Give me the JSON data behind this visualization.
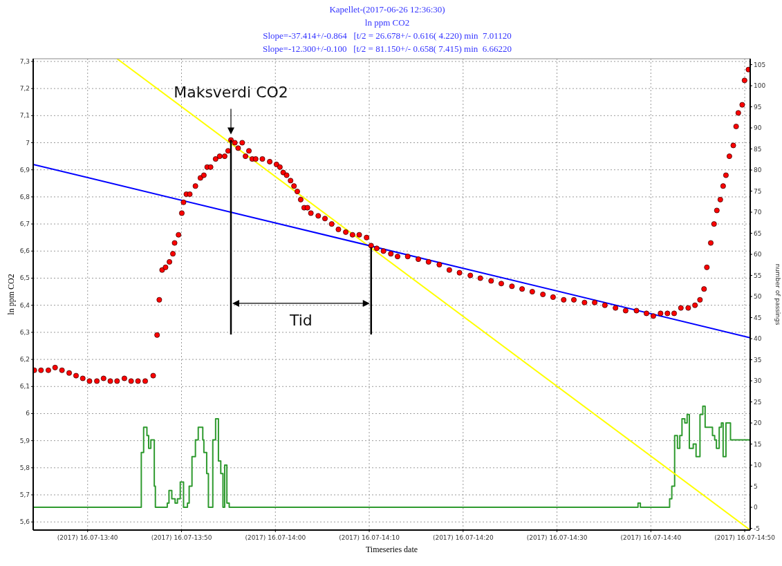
{
  "chart_data": {
    "type": "scatter",
    "title": "Kapellet-(2017-06-26 12:36:30)",
    "subtitle": "ln ppm CO2",
    "xlabel": "Timeseries date",
    "ylabel": "ln ppm CO2",
    "y2label": "number of passings",
    "annotations": [
      "Slope=-37.414+/-0.864   [t/2 = 26.678+/- 0.616( 4.220) min  7.01120",
      "Slope=-12.300+/-0.100   [t/2 = 81.150+/- 0.658( 7.415) min  6.66220",
      {
        "text": "Maksverdi CO2",
        "x": "2017-07-16T13:55:16",
        "y": 7.01
      },
      "Tid"
    ],
    "ref_lines": [
      {
        "axis": "x",
        "value": "2017-07-16T13:55:16",
        "color": "#000000"
      },
      {
        "axis": "x",
        "value": "2017-07-16T14:10:12",
        "color": "#000000"
      }
    ],
    "xlim": [
      "2017-07-16T13:34:12",
      "2017-07-16T14:50:35"
    ],
    "xticks": [
      {
        "value": "2017-07-16T13:40",
        "label": "(2017) 16.07-13:40"
      },
      {
        "value": "2017-07-16T13:50",
        "label": "(2017) 16.07-13:50"
      },
      {
        "value": "2017-07-16T14:00",
        "label": "(2017) 16.07-14:00"
      },
      {
        "value": "2017-07-16T14:10",
        "label": "(2017) 16.07-14:10"
      },
      {
        "value": "2017-07-16T14:20",
        "label": "(2017) 16.07-14:20"
      },
      {
        "value": "2017-07-16T14:30",
        "label": "(2017) 16.07-14:30"
      },
      {
        "value": "2017-07-16T14:40",
        "label": "(2017) 16.07-14:40"
      },
      {
        "value": "2017-07-16T14:50",
        "label": "(2017) 16.07-14:50"
      }
    ],
    "ylim": [
      5.57,
      7.31
    ],
    "yticks": [
      {
        "value": 5.6,
        "label": "5,6"
      },
      {
        "value": 5.7,
        "label": "5,7"
      },
      {
        "value": 5.8,
        "label": "5,8"
      },
      {
        "value": 5.9,
        "label": "5,9"
      },
      6,
      {
        "value": 6.1,
        "label": "6,1"
      },
      {
        "value": 6.2,
        "label": "6,2"
      },
      {
        "value": 6.3,
        "label": "6,3"
      },
      {
        "value": 6.4,
        "label": "6,4"
      },
      {
        "value": 6.5,
        "label": "6,5"
      },
      {
        "value": 6.6,
        "label": "6,6"
      },
      {
        "value": 6.7,
        "label": "6,7"
      },
      {
        "value": 6.8,
        "label": "6,8"
      },
      {
        "value": 6.9,
        "label": "6,9"
      },
      7,
      {
        "value": 7.1,
        "label": "7,1"
      },
      {
        "value": 7.2,
        "label": "7,2"
      },
      {
        "value": 7.3,
        "label": "7,3"
      }
    ],
    "y2lim": [
      -5.4,
      106.4
    ],
    "y2ticks": [
      -5,
      0,
      5,
      10,
      15,
      20,
      25,
      30,
      35,
      40,
      45,
      50,
      55,
      60,
      65,
      70,
      75,
      80,
      85,
      90,
      95,
      100,
      105
    ],
    "grid": true,
    "marker": "circle",
    "series": [
      {
        "color": "#ff0000",
        "x": [
          "2017-07-16T13:34:19",
          "2017-07-16T13:35:02",
          "2017-07-16T13:35:49",
          "2017-07-16T13:36:32",
          "2017-07-16T13:37:16",
          "2017-07-16T13:38:02",
          "2017-07-16T13:38:46",
          "2017-07-16T13:39:29",
          "2017-07-16T13:40:12",
          "2017-07-16T13:40:59",
          "2017-07-16T13:41:42",
          "2017-07-16T13:42:25",
          "2017-07-16T13:43:08",
          "2017-07-16T13:43:55",
          "2017-07-16T13:44:38",
          "2017-07-16T13:45:22",
          "2017-07-16T13:46:08",
          "2017-07-16T13:46:59",
          "2017-07-16T13:47:24",
          "2017-07-16T13:47:38",
          "2017-07-16T13:47:56",
          "2017-07-16T13:48:18",
          "2017-07-16T13:48:43",
          "2017-07-16T13:49:05",
          "2017-07-16T13:49:16",
          "2017-07-16T13:49:41",
          "2017-07-16T13:50:02",
          "2017-07-16T13:50:13",
          "2017-07-16T13:50:31",
          "2017-07-16T13:50:53",
          "2017-07-16T13:51:29",
          "2017-07-16T13:52:01",
          "2017-07-16T13:52:23",
          "2017-07-16T13:52:44",
          "2017-07-16T13:53:06",
          "2017-07-16T13:53:38",
          "2017-07-16T13:54:04",
          "2017-07-16T13:54:36",
          "2017-07-16T13:54:58",
          "2017-07-16T13:55:16",
          "2017-07-16T13:55:41",
          "2017-07-16T13:56:02",
          "2017-07-16T13:56:28",
          "2017-07-16T13:56:49",
          "2017-07-16T13:57:11",
          "2017-07-16T13:57:32",
          "2017-07-16T13:57:54",
          "2017-07-16T13:58:37",
          "2017-07-16T13:59:24",
          "2017-07-16T14:00:07",
          "2017-07-16T14:00:29",
          "2017-07-16T14:00:50",
          "2017-07-16T14:01:12",
          "2017-07-16T14:01:37",
          "2017-07-16T14:01:59",
          "2017-07-16T14:02:20",
          "2017-07-16T14:02:42",
          "2017-07-16T14:03:04",
          "2017-07-16T14:03:25",
          "2017-07-16T14:03:47",
          "2017-07-16T14:04:34",
          "2017-07-16T14:05:17",
          "2017-07-16T14:06:00",
          "2017-07-16T14:06:43",
          "2017-07-16T14:07:30",
          "2017-07-16T14:08:13",
          "2017-07-16T14:08:56",
          "2017-07-16T14:09:43",
          "2017-07-16T14:10:12",
          "2017-07-16T14:10:48",
          "2017-07-16T14:11:31",
          "2017-07-16T14:12:18",
          "2017-07-16T14:13:01",
          "2017-07-16T14:14:06",
          "2017-07-16T14:15:14",
          "2017-07-16T14:16:19",
          "2017-07-16T14:17:28",
          "2017-07-16T14:18:32",
          "2017-07-16T14:19:37",
          "2017-07-16T14:20:46",
          "2017-07-16T14:21:50",
          "2017-07-16T14:22:59",
          "2017-07-16T14:24:04",
          "2017-07-16T14:25:12",
          "2017-07-16T14:26:17",
          "2017-07-16T14:27:22",
          "2017-07-16T14:28:30",
          "2017-07-16T14:29:35",
          "2017-07-16T14:30:43",
          "2017-07-16T14:31:48",
          "2017-07-16T14:32:56",
          "2017-07-16T14:34:01",
          "2017-07-16T14:35:06",
          "2017-07-16T14:36:14",
          "2017-07-16T14:37:19",
          "2017-07-16T14:38:28",
          "2017-07-16T14:39:32",
          "2017-07-16T14:40:16",
          "2017-07-16T14:41:02",
          "2017-07-16T14:41:46",
          "2017-07-16T14:42:29",
          "2017-07-16T14:43:12",
          "2017-07-16T14:43:59",
          "2017-07-16T14:44:42",
          "2017-07-16T14:45:14",
          "2017-07-16T14:45:40",
          "2017-07-16T14:45:58",
          "2017-07-16T14:46:23",
          "2017-07-16T14:46:44",
          "2017-07-16T14:47:02",
          "2017-07-16T14:47:24",
          "2017-07-16T14:47:42",
          "2017-07-16T14:48:00",
          "2017-07-16T14:48:22",
          "2017-07-16T14:48:47",
          "2017-07-16T14:49:05",
          "2017-07-16T14:49:19",
          "2017-07-16T14:49:44",
          "2017-07-16T14:49:59",
          "2017-07-16T14:50:24"
        ],
        "values": [
          6.16,
          6.16,
          6.16,
          6.17,
          6.16,
          6.15,
          6.14,
          6.13,
          6.12,
          6.12,
          6.13,
          6.12,
          6.12,
          6.13,
          6.12,
          6.12,
          6.12,
          6.14,
          6.29,
          6.42,
          6.53,
          6.54,
          6.56,
          6.59,
          6.63,
          6.66,
          6.74,
          6.78,
          6.81,
          6.81,
          6.84,
          6.87,
          6.88,
          6.91,
          6.91,
          6.94,
          6.95,
          6.95,
          6.97,
          7.01,
          7.0,
          6.98,
          7.0,
          6.95,
          6.97,
          6.94,
          6.94,
          6.94,
          6.93,
          6.92,
          6.91,
          6.89,
          6.88,
          6.86,
          6.84,
          6.82,
          6.79,
          6.76,
          6.76,
          6.74,
          6.73,
          6.72,
          6.7,
          6.68,
          6.67,
          6.66,
          6.66,
          6.65,
          6.62,
          6.61,
          6.6,
          6.59,
          6.58,
          6.58,
          6.57,
          6.56,
          6.55,
          6.53,
          6.52,
          6.51,
          6.5,
          6.49,
          6.48,
          6.47,
          6.46,
          6.45,
          6.44,
          6.43,
          6.42,
          6.42,
          6.41,
          6.41,
          6.4,
          6.39,
          6.38,
          6.38,
          6.37,
          6.36,
          6.37,
          6.37,
          6.37,
          6.39,
          6.39,
          6.4,
          6.42,
          6.46,
          6.54,
          6.63,
          6.7,
          6.75,
          6.79,
          6.84,
          6.88,
          6.95,
          6.99,
          7.06,
          7.11,
          7.14,
          7.23,
          7.27
        ]
      },
      {
        "type": "line",
        "marker": "none",
        "color": "#0000ff",
        "x": [
          "2017-07-16T13:34:12",
          "2017-07-16T14:50:35"
        ],
        "values": [
          6.92,
          6.28
        ]
      },
      {
        "type": "line",
        "marker": "none",
        "color": "#ffff00",
        "x": [
          "2017-07-16T13:43:08",
          "2017-07-16T14:50:35"
        ],
        "values": [
          7.31,
          5.57
        ]
      },
      {
        "type": "step",
        "marker": "none",
        "color": "#2e9a2e",
        "axis": "y2",
        "x": [
          "2017-07-16T13:34:12",
          "2017-07-16T13:45:43",
          "2017-07-16T13:45:58",
          "2017-07-16T13:46:19",
          "2017-07-16T13:46:30",
          "2017-07-16T13:46:44",
          "2017-07-16T13:47:06",
          "2017-07-16T13:47:13",
          "2017-07-16T13:48:29",
          "2017-07-16T13:48:40",
          "2017-07-16T13:48:58",
          "2017-07-16T13:49:19",
          "2017-07-16T13:49:34",
          "2017-07-16T13:49:52",
          "2017-07-16T13:50:13",
          "2017-07-16T13:50:38",
          "2017-07-16T13:50:49",
          "2017-07-16T13:51:07",
          "2017-07-16T13:51:29",
          "2017-07-16T13:51:47",
          "2017-07-16T13:52:16",
          "2017-07-16T13:52:23",
          "2017-07-16T13:52:41",
          "2017-07-16T13:52:52",
          "2017-07-16T13:53:20",
          "2017-07-16T13:53:38",
          "2017-07-16T13:53:56",
          "2017-07-16T13:54:11",
          "2017-07-16T13:54:25",
          "2017-07-16T13:54:36",
          "2017-07-16T13:54:50",
          "2017-07-16T13:55:05",
          "2017-07-16T14:38:38",
          "2017-07-16T14:38:53",
          "2017-07-16T14:42:00",
          "2017-07-16T14:42:14",
          "2017-07-16T14:42:32",
          "2017-07-16T14:42:50",
          "2017-07-16T14:43:05",
          "2017-07-16T14:43:19",
          "2017-07-16T14:43:37",
          "2017-07-16T14:43:52",
          "2017-07-16T14:44:06",
          "2017-07-16T14:44:31",
          "2017-07-16T14:44:49",
          "2017-07-16T14:45:14",
          "2017-07-16T14:45:32",
          "2017-07-16T14:45:47",
          "2017-07-16T14:46:34",
          "2017-07-16T14:46:48",
          "2017-07-16T14:46:59",
          "2017-07-16T14:47:17",
          "2017-07-16T14:47:31",
          "2017-07-16T14:47:42",
          "2017-07-16T14:48:00",
          "2017-07-16T14:48:29",
          "2017-07-16T14:50:35"
        ],
        "values": [
          0,
          13,
          19,
          17,
          14,
          16,
          5,
          0,
          1,
          4,
          2,
          1,
          2,
          6,
          0,
          1,
          5,
          12,
          16,
          19,
          16,
          13,
          8,
          0,
          16,
          21,
          11,
          8,
          0,
          10,
          1,
          0,
          1,
          0,
          2,
          5,
          17,
          14,
          17,
          21,
          20,
          22,
          14,
          15,
          12,
          22,
          24,
          19,
          17,
          16,
          14,
          19,
          20,
          12,
          20,
          16,
          16
        ]
      }
    ]
  }
}
